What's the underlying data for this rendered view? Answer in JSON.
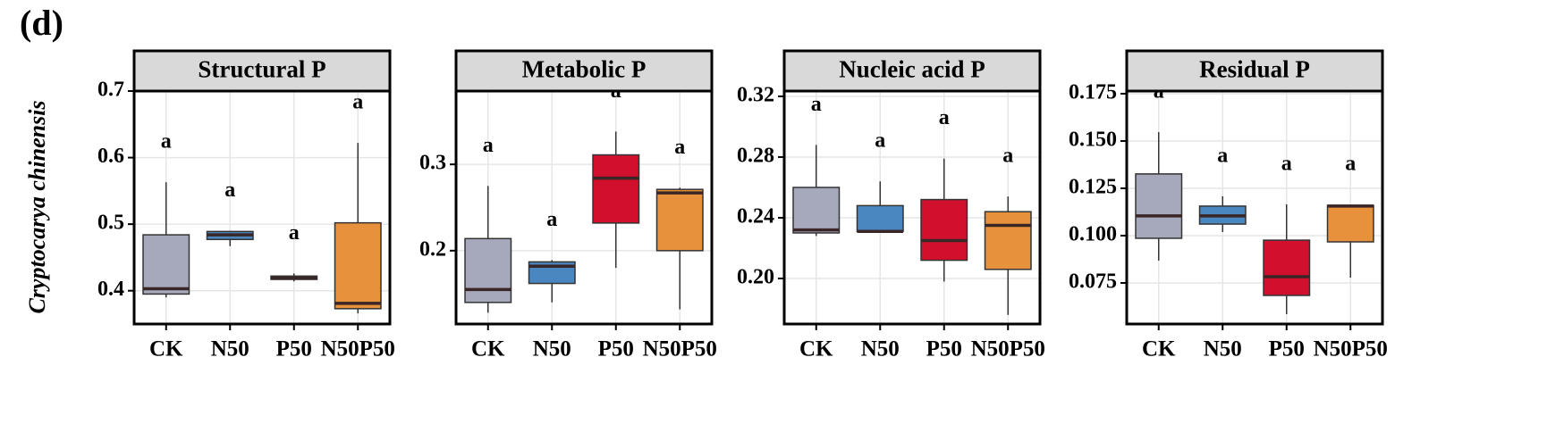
{
  "panel_label": "(d)",
  "ylabel": "Cryptocarya chinensis",
  "chart_data": [
    {
      "type": "box",
      "title": "Structural P",
      "categories": [
        "CK",
        "N50",
        "P50",
        "N50P50"
      ],
      "colors": [
        "#a6a9bb",
        "#4a87c0",
        "#d0102c",
        "#e8913d"
      ],
      "boxes": [
        {
          "low": 0.39,
          "q1": 0.395,
          "median": 0.403,
          "q3": 0.484,
          "high": 0.563
        },
        {
          "low": 0.467,
          "q1": 0.477,
          "median": 0.484,
          "q3": 0.489,
          "high": 0.49
        },
        {
          "low": 0.414,
          "q1": 0.417,
          "median": 0.419,
          "q3": 0.422,
          "high": 0.426
        },
        {
          "low": 0.366,
          "q1": 0.373,
          "median": 0.381,
          "q3": 0.502,
          "high": 0.622
        }
      ],
      "letters": [
        "a",
        "a",
        "a",
        "a"
      ],
      "ylim": [
        0.35,
        0.7
      ],
      "yticks": [
        0.4,
        0.5,
        0.6,
        0.7
      ],
      "grid": true
    },
    {
      "type": "box",
      "title": "Metabolic P",
      "categories": [
        "CK",
        "N50",
        "P50",
        "N50P50"
      ],
      "colors": [
        "#a6a9bb",
        "#4a87c0",
        "#d0102c",
        "#e8913d"
      ],
      "boxes": [
        {
          "low": 0.128,
          "q1": 0.14,
          "median": 0.155,
          "q3": 0.214,
          "high": 0.275
        },
        {
          "low": 0.14,
          "q1": 0.162,
          "median": 0.182,
          "q3": 0.187,
          "high": 0.189
        },
        {
          "low": 0.18,
          "q1": 0.232,
          "median": 0.284,
          "q3": 0.311,
          "high": 0.338
        },
        {
          "low": 0.132,
          "q1": 0.2,
          "median": 0.267,
          "q3": 0.271,
          "high": 0.273
        }
      ],
      "letters": [
        "a",
        "a",
        "a",
        "a"
      ],
      "ylim": [
        0.115,
        0.385
      ],
      "yticks": [
        0.2,
        0.3
      ],
      "grid": true
    },
    {
      "type": "box",
      "title": "Nucleic acid P",
      "categories": [
        "CK",
        "N50",
        "P50",
        "N50P50"
      ],
      "colors": [
        "#a6a9bb",
        "#4a87c0",
        "#d0102c",
        "#e8913d"
      ],
      "boxes": [
        {
          "low": 0.228,
          "q1": 0.23,
          "median": 0.232,
          "q3": 0.26,
          "high": 0.288
        },
        {
          "low": 0.2306,
          "q1": 0.231,
          "median": 0.231,
          "q3": 0.248,
          "high": 0.264
        },
        {
          "low": 0.198,
          "q1": 0.212,
          "median": 0.225,
          "q3": 0.252,
          "high": 0.279
        },
        {
          "low": 0.176,
          "q1": 0.206,
          "median": 0.235,
          "q3": 0.244,
          "high": 0.254
        }
      ],
      "letters": [
        "a",
        "a",
        "a",
        "a"
      ],
      "ylim": [
        0.17,
        0.3235
      ],
      "yticks": [
        {
          "value": 0.2,
          "label": "0.20"
        },
        0.24,
        0.28,
        0.32
      ],
      "grid": true
    },
    {
      "type": "box",
      "title": "Residual P",
      "categories": [
        "CK",
        "N50",
        "P50",
        "N50P50"
      ],
      "colors": [
        "#a6a9bb",
        "#4a87c0",
        "#d0102c",
        "#e8913d"
      ],
      "boxes": [
        {
          "low": 0.0868,
          "q1": 0.0986,
          "median": 0.1104,
          "q3": 0.1326,
          "high": 0.1547
        },
        {
          "low": 0.1019,
          "q1": 0.1061,
          "median": 0.1104,
          "q3": 0.1156,
          "high": 0.1208
        },
        {
          "low": 0.0585,
          "q1": 0.0684,
          "median": 0.0783,
          "q3": 0.0976,
          "high": 0.1165
        },
        {
          "low": 0.0778,
          "q1": 0.0967,
          "median": 0.1156,
          "q3": 0.116,
          "high": 0.1165
        }
      ],
      "letters": [
        "a",
        "a",
        "a",
        "a"
      ],
      "ylim": [
        0.0533,
        0.1764
      ],
      "yticks": [
        0.075,
        {
          "value": 0.1,
          "label": "0.100"
        },
        0.125,
        {
          "value": 0.15,
          "label": "0.150"
        },
        0.175
      ],
      "grid": true
    }
  ]
}
